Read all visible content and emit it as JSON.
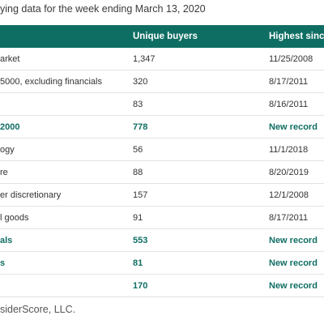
{
  "subtitle": "ying data for the week ending March 13, 2020",
  "table": {
    "headers": [
      "",
      "Unique buyers",
      "Highest since"
    ],
    "rows": [
      {
        "label": "arket",
        "buyers": "1,347",
        "since": "11/25/2008",
        "highlight": false
      },
      {
        "label": "5000, excluding financials",
        "buyers": "320",
        "since": "8/17/2011",
        "highlight": false
      },
      {
        "label": "",
        "buyers": "83",
        "since": "8/16/2011",
        "highlight": false
      },
      {
        "label": "2000",
        "buyers": "778",
        "since": "New record",
        "highlight": true
      },
      {
        "label": "ogy",
        "buyers": "56",
        "since": "11/1/2018",
        "highlight": false
      },
      {
        "label": "re",
        "buyers": "88",
        "since": "8/20/2019",
        "highlight": false
      },
      {
        "label": "er discretionary",
        "buyers": "157",
        "since": "12/1/2008",
        "highlight": false
      },
      {
        "label": "l goods",
        "buyers": "91",
        "since": "8/17/2011",
        "highlight": false
      },
      {
        "label": "als",
        "buyers": "553",
        "since": "New record",
        "highlight": true
      },
      {
        "label": "s",
        "buyers": "81",
        "since": "New record",
        "highlight": true
      },
      {
        "label": "",
        "buyers": "170",
        "since": "New record",
        "highlight": true
      }
    ]
  },
  "source": "siderScore, LLC.",
  "colors": {
    "header_bg": "#0f6e63",
    "highlight_text": "#0f6e63"
  }
}
